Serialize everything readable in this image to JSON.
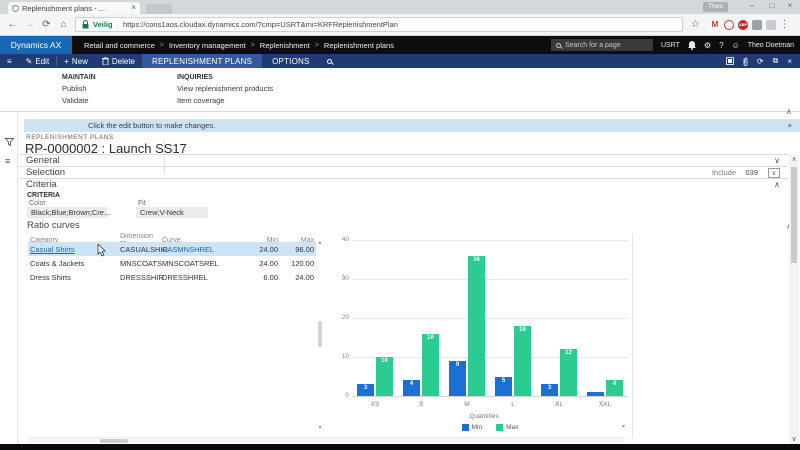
{
  "browser": {
    "tab_title": "Replenishment plans - ...",
    "secure_label": "Veilig",
    "url": "https://cons1aos.cloudax.dynamics.com/?cmp=USRT&mi=KRFReplenishmentPlan",
    "profile_name": "Theo",
    "extensions": [
      {
        "label": "M",
        "color": "#d93025"
      },
      {
        "label": "O",
        "color": "#d7372f"
      },
      {
        "label": "ABP",
        "color": "#c62828"
      },
      {
        "label": "",
        "color": "#9aa0a6"
      },
      {
        "label": "",
        "color": "#c8cace"
      }
    ]
  },
  "navbar": {
    "brand": "Dynamics AX",
    "breadcrumb": [
      "Retail and commerce",
      "Inventory management",
      "Replenishment",
      "Replenishment plans"
    ],
    "breadcrumb_separator": ">",
    "search_placeholder": "Search for a page",
    "company": "USRT",
    "user_name": "Theo Doetman"
  },
  "command_bar": {
    "edit": "Edit",
    "new": "New",
    "delete": "Delete",
    "tab_replenishment": "REPLENISHMENT PLANS",
    "tab_options": "OPTIONS"
  },
  "action_pane": {
    "maintain_title": "MAINTAIN",
    "maintain_items": [
      "Publish",
      "Validate"
    ],
    "inquiries_title": "INQUIRIES",
    "inquiries_items": [
      "View replenishment products",
      "Item coverage"
    ]
  },
  "notification": {
    "message": "Click the edit button to make changes."
  },
  "page": {
    "caption": "REPLENISHMENT PLANS",
    "title": "RP-0000002 : Launch SS17"
  },
  "sections": {
    "general": "General",
    "selection": "Selection",
    "selection_include_label": "Include",
    "selection_include_value": "039",
    "criteria": "Criteria",
    "criteria_group_label": "CRITERIA",
    "color_label": "Color",
    "color_value": "Black;Blue;Brown;Cre...",
    "fit_label": "Fit",
    "fit_value": "Crew;V-Neck",
    "ratio_curves": "Ratio curves"
  },
  "ratio_table": {
    "columns": [
      "Category",
      "Dimension gr...",
      "Curve",
      "Min",
      "Max"
    ],
    "rows": [
      {
        "category": "Casual Shirts",
        "dimension_group": "CASUALSHIR",
        "curve": "CASMNSHREL",
        "min": "24.00",
        "max": "96.00"
      },
      {
        "category": "Coats & Jackets",
        "dimension_group": "MNSCOATS",
        "curve": "MNSCOATSREL",
        "min": "24.00",
        "max": "120.00"
      },
      {
        "category": "Dress Shirts",
        "dimension_group": "DRESSSHIR",
        "curve": "DRESSHREL",
        "min": "6.00",
        "max": "24.00"
      }
    ]
  },
  "chart_data": {
    "type": "bar",
    "categories": [
      "XS",
      "S",
      "M",
      "L",
      "XL",
      "XXL"
    ],
    "series": [
      {
        "name": "Min",
        "color": "#1a70d4",
        "values": [
          3,
          4,
          9,
          5,
          3,
          1
        ]
      },
      {
        "name": "Max",
        "color": "#2bcb91",
        "values": [
          10,
          16,
          36,
          18,
          12,
          4
        ]
      }
    ],
    "xlabel": "Quantities",
    "ylim": [
      0,
      40
    ],
    "yticks": [
      0,
      10,
      20,
      30,
      40
    ],
    "grid": true,
    "legend_position": "bottom"
  },
  "icons": {
    "back": "←",
    "forward": "→",
    "reload": "⟳",
    "home": "⌂",
    "star": "☆",
    "menu": "⋮",
    "minimize": "–",
    "maximize": "□",
    "close": "×",
    "hamburger": "≡",
    "edit": "✎",
    "add": "+",
    "refresh": "⟳",
    "popout": "⧉",
    "settings": "⚙",
    "help": "?",
    "feedback": "☺",
    "chevron_down": "∨",
    "chevron_up": "∧",
    "dropdown": "∨",
    "scroll_up": "▴",
    "scroll_down": "▾",
    "list": "≡",
    "tab_close": "×"
  }
}
